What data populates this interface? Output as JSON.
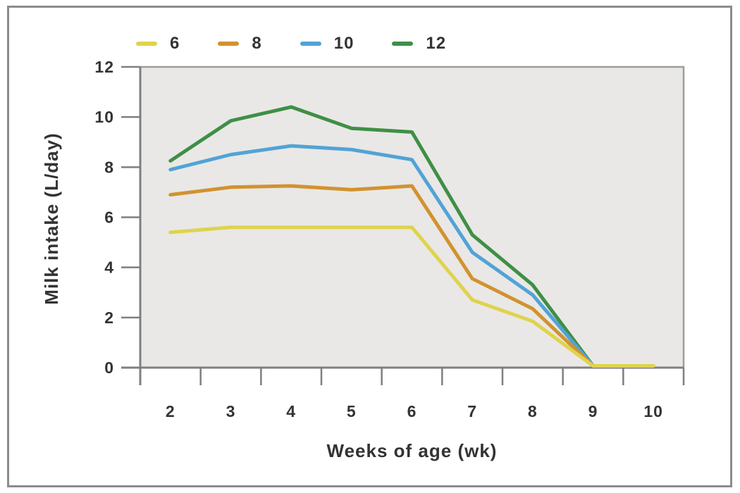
{
  "frame": {
    "border_color": "#8c8c8c",
    "background": "#ffffff"
  },
  "chart_data": {
    "type": "line",
    "title": "",
    "xlabel": "Weeks of age (wk)",
    "ylabel": "Milk intake (L/day)",
    "categories": [
      2,
      3,
      4,
      5,
      6,
      7,
      8,
      9,
      10
    ],
    "ylim": [
      0,
      12
    ],
    "yticks": [
      0,
      2,
      4,
      6,
      8,
      10,
      12
    ],
    "grid": false,
    "legend_position": "top",
    "plot_bg": "#e9e8e6",
    "axis_color": "#7f7f7f",
    "plot_border_color": "#9d9d9d",
    "text_color": "#333333",
    "series": [
      {
        "name": "6",
        "color": "#dfd34c",
        "values": [
          5.4,
          5.6,
          5.6,
          5.6,
          5.6,
          2.7,
          1.85,
          0.07,
          0.07
        ]
      },
      {
        "name": "8",
        "color": "#d2922f",
        "values": [
          6.9,
          7.2,
          7.25,
          7.1,
          7.25,
          3.55,
          2.35,
          0.07,
          null
        ]
      },
      {
        "name": "10",
        "color": "#51a3d6",
        "values": [
          7.9,
          8.5,
          8.85,
          8.7,
          8.3,
          4.6,
          2.9,
          0.07,
          null
        ]
      },
      {
        "name": "12",
        "color": "#3f8f46",
        "values": [
          8.25,
          9.85,
          10.4,
          9.55,
          9.4,
          5.3,
          3.3,
          0.07,
          null
        ]
      }
    ]
  }
}
